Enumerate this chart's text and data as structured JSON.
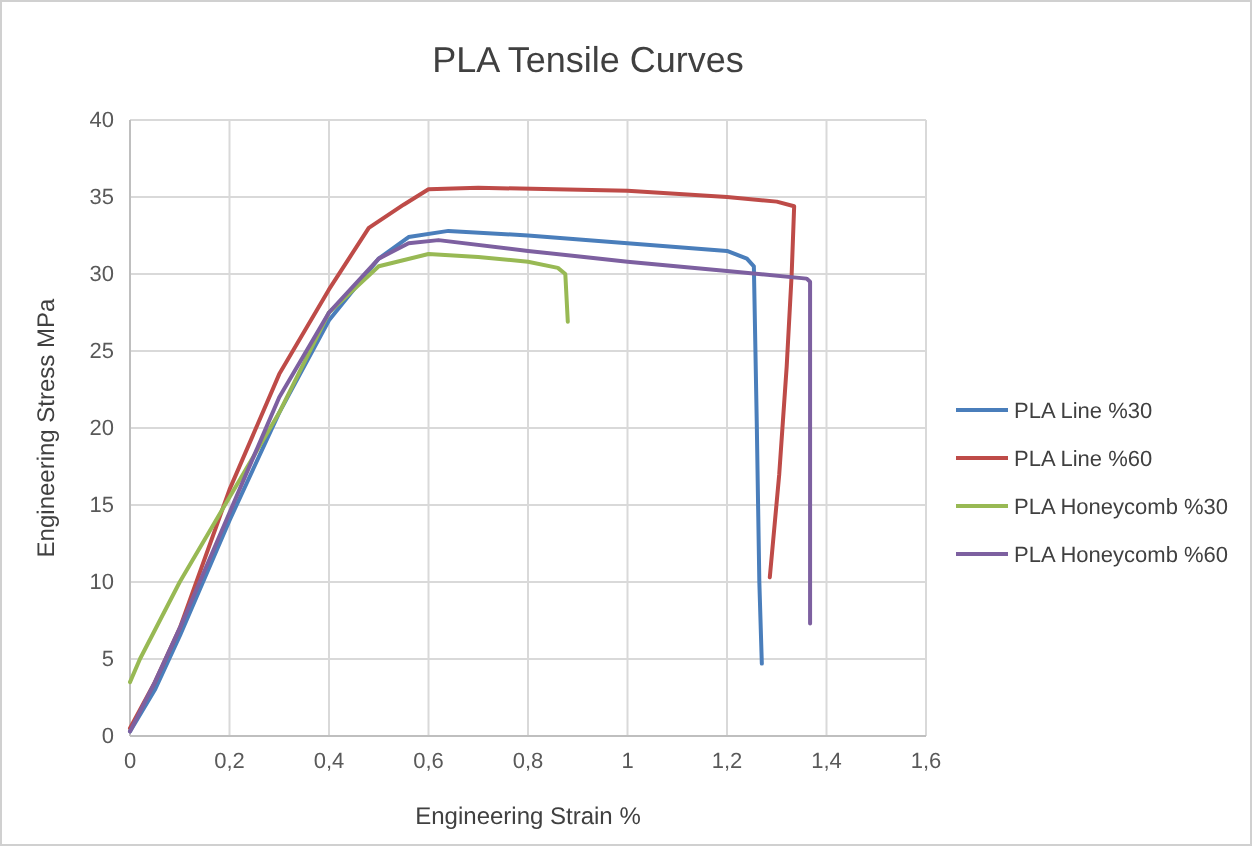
{
  "chart_data": {
    "type": "line",
    "title": "PLA Tensile Curves",
    "xlabel": "Engineering Strain %",
    "ylabel": "Engineering Stress MPa",
    "xlim": [
      0,
      1.6
    ],
    "xticks": [
      0,
      {
        "value": 0.2,
        "label": "0,2"
      },
      {
        "value": 0.4,
        "label": "0,4"
      },
      {
        "value": 0.6,
        "label": "0,6"
      },
      {
        "value": 0.8,
        "label": "0,8"
      },
      1,
      {
        "value": 1.2,
        "label": "1,2"
      },
      {
        "value": 1.4,
        "label": "1,4"
      },
      {
        "value": 1.6,
        "label": "1,6"
      }
    ],
    "ylim": [
      0,
      40
    ],
    "yticks": [
      0,
      5,
      10,
      15,
      20,
      25,
      30,
      35,
      40
    ],
    "grid": true,
    "legend": "right",
    "marker": "none",
    "line_style": "solid",
    "series": [
      {
        "name": "PLA Line %30",
        "color": "#4a7ebb",
        "x": [
          0,
          0.05,
          0.1,
          0.2,
          0.3,
          0.4,
          0.5,
          0.56,
          0.64,
          0.8,
          1.0,
          1.2,
          1.24,
          1.254,
          1.26,
          1.265,
          1.27
        ],
        "values": [
          0.3,
          3,
          6.5,
          14,
          21,
          27,
          31,
          32.4,
          32.8,
          32.5,
          32,
          31.5,
          31,
          30.5,
          20,
          10,
          4.7
        ]
      },
      {
        "name": "PLA Line %60",
        "color": "#be4b48",
        "x": [
          0,
          0.05,
          0.1,
          0.2,
          0.3,
          0.4,
          0.44,
          0.48,
          0.55,
          0.6,
          0.7,
          1.0,
          1.2,
          1.3,
          1.335,
          1.33,
          1.32,
          1.305,
          1.286
        ],
        "values": [
          0.5,
          3.5,
          7,
          16,
          23.5,
          29,
          31,
          33,
          34.5,
          35.5,
          35.6,
          35.4,
          35,
          34.7,
          34.4,
          30,
          24,
          17,
          10.3
        ]
      },
      {
        "name": "PLA Honeycomb %30",
        "color": "#98b954",
        "x": [
          0,
          0.02,
          0.1,
          0.2,
          0.3,
          0.4,
          0.5,
          0.6,
          0.7,
          0.8,
          0.86,
          0.875,
          0.88
        ],
        "values": [
          3.5,
          5,
          10,
          15.5,
          21,
          27.5,
          30.5,
          31.3,
          31.1,
          30.8,
          30.4,
          30,
          26.9
        ]
      },
      {
        "name": "PLA Honeycomb %60",
        "color": "#7d60a0",
        "x": [
          0,
          0.05,
          0.1,
          0.2,
          0.3,
          0.4,
          0.5,
          0.56,
          0.62,
          0.8,
          1.0,
          1.2,
          1.36,
          1.367,
          1.367,
          1.367
        ],
        "values": [
          0.3,
          3.5,
          7,
          14.5,
          22,
          27.5,
          31,
          32,
          32.2,
          31.5,
          30.8,
          30.2,
          29.7,
          29.5,
          18,
          7.3
        ]
      }
    ]
  }
}
